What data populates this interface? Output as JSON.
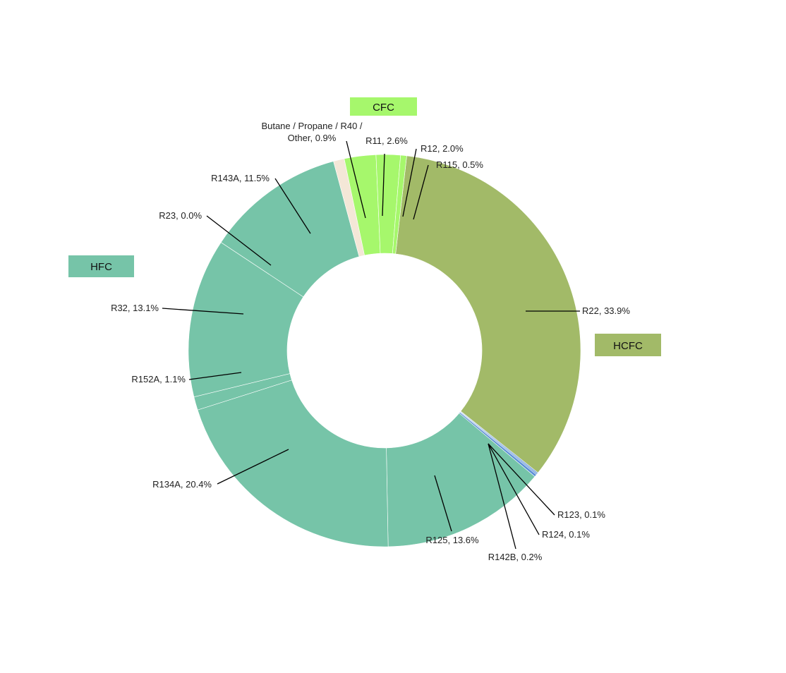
{
  "chart_data": {
    "type": "pie",
    "donut": true,
    "title": "",
    "categories": [
      "R22",
      "R123",
      "R124",
      "R142B",
      "R125",
      "R134A",
      "R152A",
      "R32",
      "R23",
      "R143A",
      "Butane / Propane / R40 / Other",
      "R11",
      "R12",
      "R115"
    ],
    "values": [
      33.9,
      0.1,
      0.1,
      0.2,
      13.6,
      20.4,
      1.1,
      13.1,
      0.0,
      11.5,
      0.9,
      2.6,
      2.0,
      0.5
    ],
    "labels": [
      "R22, 33.9%",
      "R123, 0.1%",
      "R124, 0.1%",
      "R142B, 0.2%",
      "R125, 13.6%",
      "R134A, 20.4%",
      "R152A, 1.1%",
      "R32, 13.1%",
      "R23, 0.0%",
      "R143A, 11.5%",
      "Butane / Propane / R40 / Other, 0.9%",
      "R11, 2.6%",
      "R12, 2.0%",
      "R115, 0.5%"
    ],
    "label_lines": [
      [
        "R22, 33.9%"
      ],
      [
        "R123, 0.1%"
      ],
      [
        "R124, 0.1%"
      ],
      [
        "R142B, 0.2%"
      ],
      [
        "R125, 13.6%"
      ],
      [
        "R134A, 20.4%"
      ],
      [
        "R152A, 1.1%"
      ],
      [
        "R32, 13.1%"
      ],
      [
        "R23, 0.0%"
      ],
      [
        "R143A, 11.5%"
      ],
      [
        "Butane / Propane / R40 /",
        "Other, 0.9%"
      ],
      [
        "R11, 2.6%"
      ],
      [
        "R12, 2.0%"
      ],
      [
        "R115, 0.5%"
      ]
    ],
    "groups": [
      "HCFC",
      "HCFC",
      "HCFC",
      "HCFC",
      "HFC",
      "HFC",
      "HFC",
      "HFC",
      "HFC",
      "HFC",
      "Other",
      "CFC",
      "CFC",
      "CFC"
    ],
    "group_labels": [
      "CFC",
      "HFC",
      "HCFC"
    ],
    "colors": {
      "HCFC": "#a2ba68",
      "HFC": "#76c4a8",
      "CFC": "#a6f76c",
      "Other": "#f4e7d7",
      "HCFC_minor": "#5b8fd6",
      "label_box_CFC": "#a6f76c",
      "label_box_HFC": "#76c4a8",
      "label_box_HCFC": "#a2ba68"
    },
    "legend": "none"
  }
}
